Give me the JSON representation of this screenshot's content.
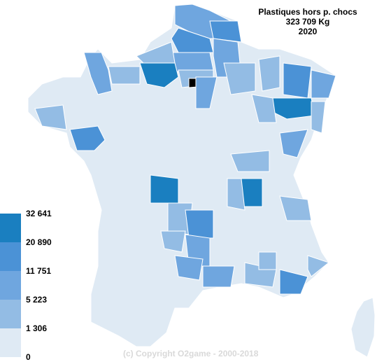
{
  "title": {
    "line1": "Plastiques hors p. chocs",
    "line2": "323 709 Kg",
    "line3": "2020"
  },
  "legend": {
    "thresholds": [
      "32 641",
      "20 890",
      "11 751",
      "5 223",
      "1 306",
      "0"
    ],
    "colors": [
      "#1a7fc0",
      "#4b92d6",
      "#6fa6df",
      "#93bce4",
      "#dfeaf4"
    ]
  },
  "colors": {
    "land": "#dfeaf4",
    "border": "#ffffff"
  },
  "copyright": "(c) Copyright O2game - 2000-2018"
}
